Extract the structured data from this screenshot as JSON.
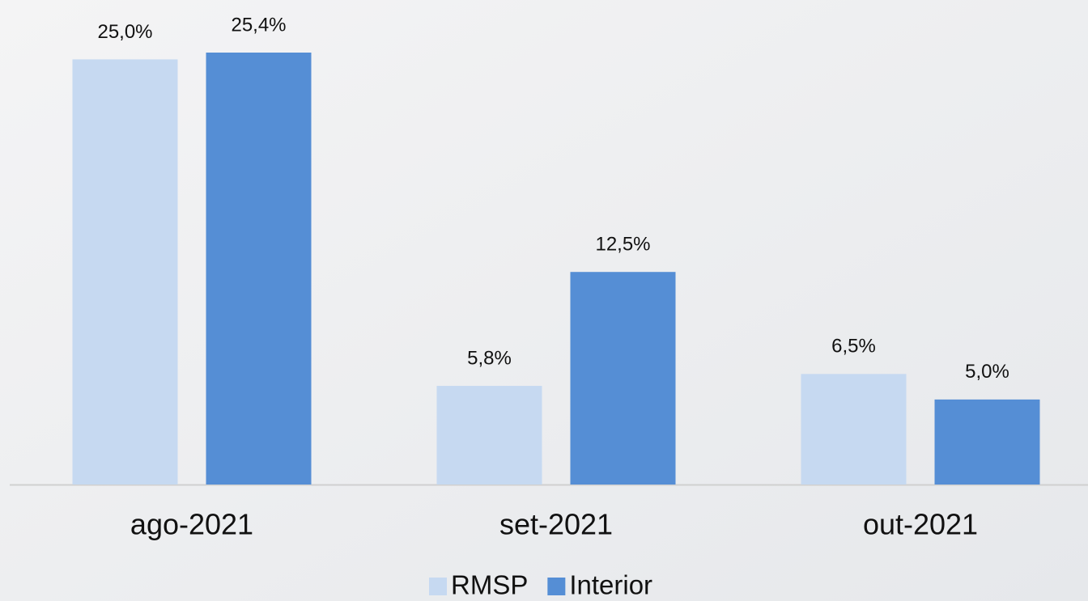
{
  "chart_data": {
    "type": "bar",
    "categories": [
      "ago-2021",
      "set-2021",
      "out-2021"
    ],
    "series": [
      {
        "name": "RMSP",
        "color": "#c6d9f1",
        "values": [
          25.0,
          5.8,
          6.5
        ],
        "value_labels": [
          "25,0%",
          "5,8%",
          "6,5%"
        ]
      },
      {
        "name": "Interior",
        "color": "#558ed5",
        "values": [
          25.4,
          12.5,
          5.0
        ],
        "value_labels": [
          "25,4%",
          "12,5%",
          "5,0%"
        ]
      }
    ],
    "legend": "bottom"
  }
}
